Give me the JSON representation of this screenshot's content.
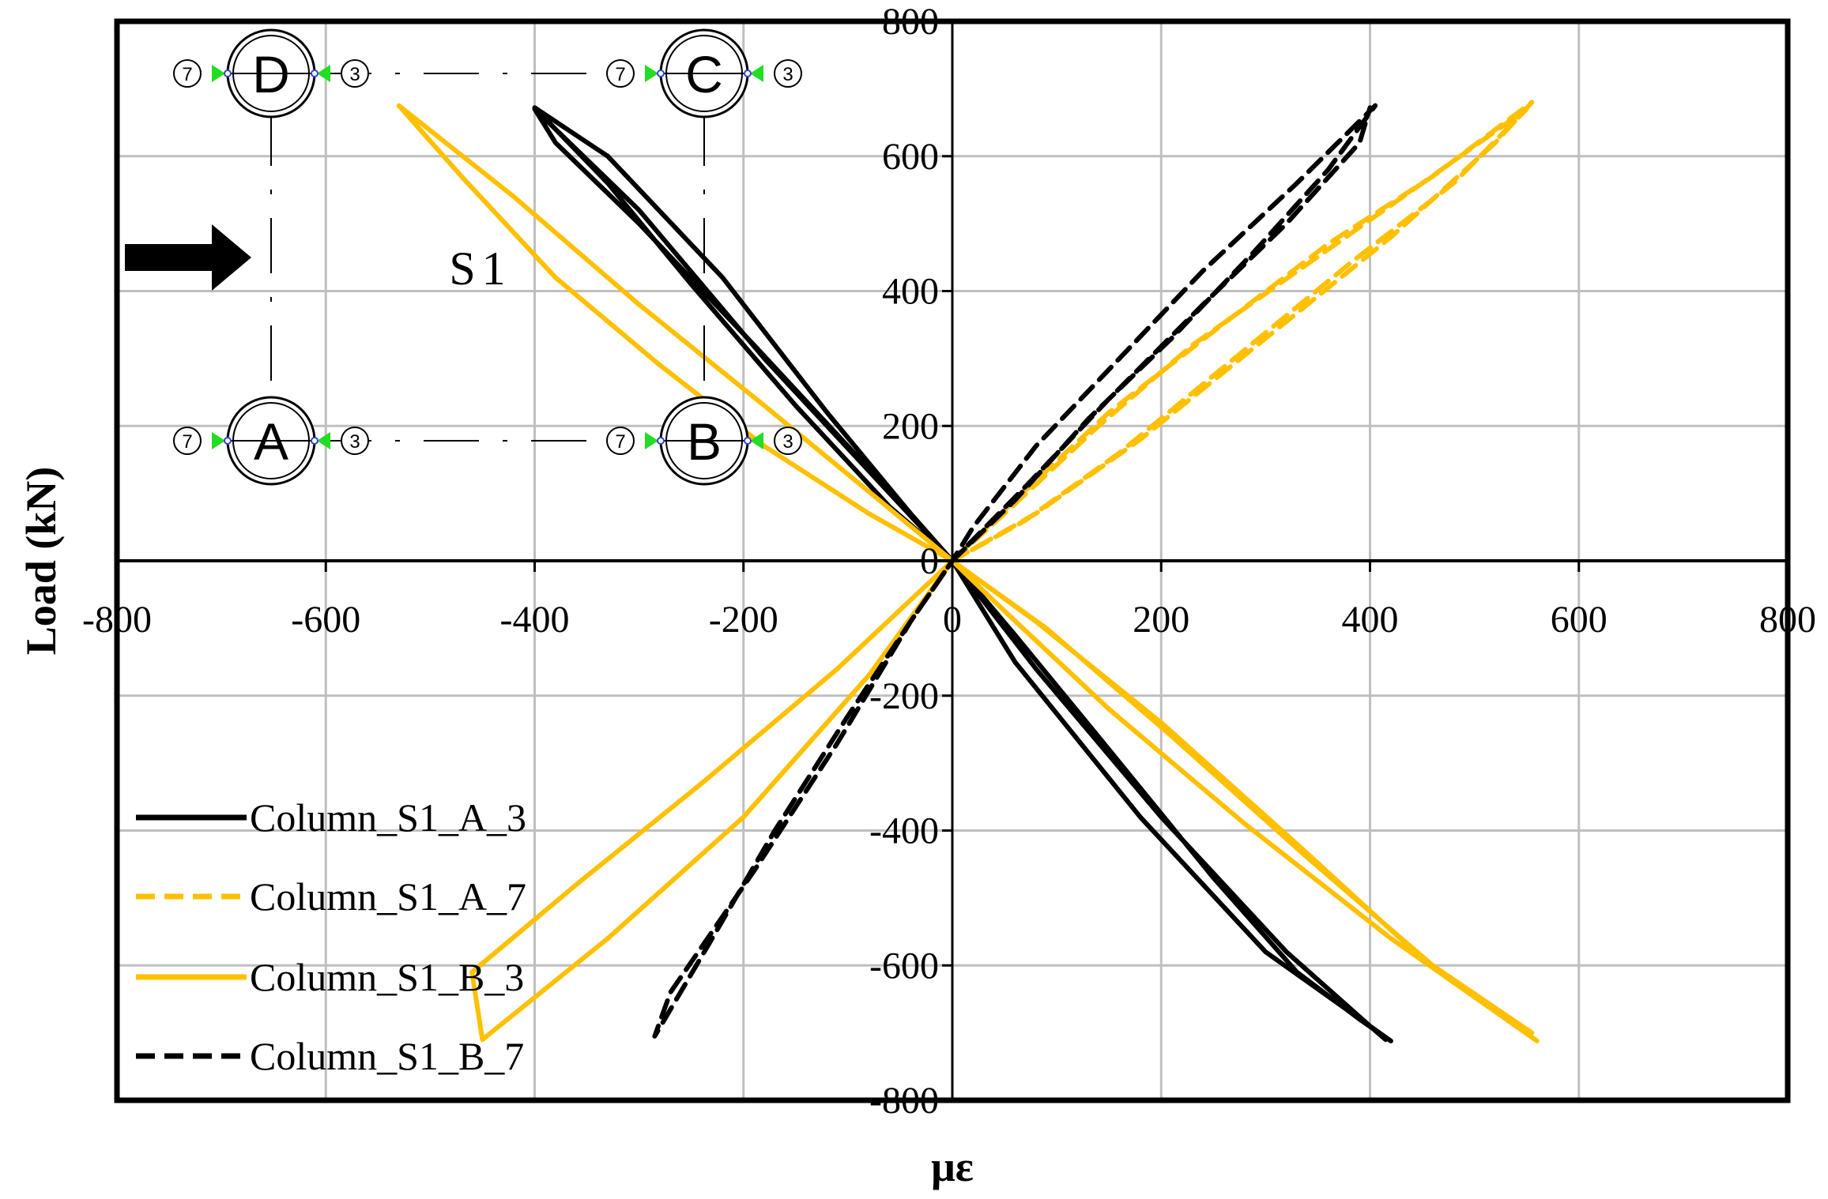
{
  "chart_data": {
    "type": "line",
    "title": "",
    "xlabel": "με",
    "ylabel": "Load (kN)",
    "xlim": [
      -800,
      800
    ],
    "ylim": [
      -800,
      800
    ],
    "xticks": [
      -800,
      -600,
      -400,
      -200,
      0,
      200,
      400,
      600,
      800
    ],
    "yticks": [
      -800,
      -600,
      -400,
      -200,
      0,
      200,
      400,
      600,
      800
    ],
    "grid": true,
    "legend_position": "bottom-left",
    "series": [
      {
        "name": "Column_S1_A_3",
        "color": "#000000",
        "dash": "solid",
        "x": [
          0,
          -60,
          -150,
          -250,
          -330,
          -400,
          -330,
          -220,
          -120,
          -40,
          0,
          60,
          150,
          250,
          330,
          390,
          420,
          300,
          180,
          60,
          0,
          -70,
          -190,
          -300,
          -380,
          -400,
          -300,
          -180,
          -60,
          0,
          80,
          200,
          320,
          400,
          415
        ],
        "y": [
          0,
          80,
          230,
          410,
          560,
          672,
          600,
          420,
          220,
          70,
          0,
          -110,
          -280,
          -470,
          -610,
          -680,
          -712,
          -580,
          -380,
          -150,
          0,
          120,
          320,
          500,
          620,
          670,
          520,
          300,
          100,
          0,
          -160,
          -380,
          -580,
          -690,
          -710
        ]
      },
      {
        "name": "Column_S1_A_7",
        "color": "#FFC000",
        "dash": "dashed",
        "x": [
          0,
          80,
          180,
          300,
          420,
          520,
          555,
          460,
          360,
          250,
          150,
          60,
          0,
          70,
          160,
          270,
          380,
          480,
          550,
          450,
          340,
          230,
          140,
          50,
          0
        ],
        "y": [
          0,
          70,
          180,
          330,
          480,
          620,
          680,
          570,
          470,
          340,
          220,
          90,
          0,
          60,
          160,
          300,
          440,
          560,
          670,
          560,
          440,
          320,
          200,
          70,
          0
        ]
      },
      {
        "name": "Column_S1_B_3",
        "color": "#FFC000",
        "dash": "solid",
        "x": [
          0,
          -80,
          -180,
          -280,
          -380,
          -470,
          -530,
          -420,
          -300,
          -180,
          -70,
          0,
          80,
          200,
          330,
          450,
          540,
          560,
          420,
          280,
          150,
          40,
          0,
          -110,
          -240,
          -360,
          -460,
          -450,
          -330,
          -200,
          -80,
          0,
          90,
          210,
          340,
          460,
          555
        ],
        "y": [
          0,
          70,
          170,
          290,
          420,
          570,
          675,
          540,
          380,
          230,
          90,
          0,
          -90,
          -240,
          -420,
          -590,
          -690,
          -712,
          -560,
          -390,
          -220,
          -60,
          0,
          -160,
          -330,
          -480,
          -610,
          -710,
          -560,
          -380,
          -170,
          0,
          -100,
          -260,
          -440,
          -600,
          -700
        ]
      },
      {
        "name": "Column_S1_B_7",
        "color": "#000000",
        "dash": "dashed",
        "x": [
          0,
          60,
          130,
          210,
          290,
          360,
          405,
          330,
          240,
          160,
          80,
          20,
          0,
          -40,
          -100,
          -170,
          -230,
          -285,
          -270,
          -190,
          -110,
          -40,
          0,
          70,
          150,
          240,
          320,
          390,
          400
        ],
        "y": [
          0,
          90,
          210,
          330,
          460,
          580,
          675,
          560,
          430,
          300,
          170,
          50,
          0,
          -90,
          -230,
          -400,
          -560,
          -705,
          -640,
          -460,
          -270,
          -90,
          0,
          110,
          240,
          380,
          500,
          620,
          672
        ]
      }
    ]
  },
  "inset": {
    "columns": [
      {
        "letter": "D",
        "left_num": "7",
        "right_num": "3"
      },
      {
        "letter": "C",
        "left_num": "7",
        "right_num": "3"
      },
      {
        "letter": "A",
        "left_num": "7",
        "right_num": "3"
      },
      {
        "letter": "B",
        "left_num": "7",
        "right_num": "3"
      }
    ],
    "frame_label": "S1",
    "arrow_icon": "load-direction-arrow-icon"
  },
  "colors": {
    "black": "#000000",
    "gold": "#FFC000",
    "grid": "#BFBFBF",
    "green_marker": "#22DD22",
    "blue_marker": "#3344CC"
  }
}
